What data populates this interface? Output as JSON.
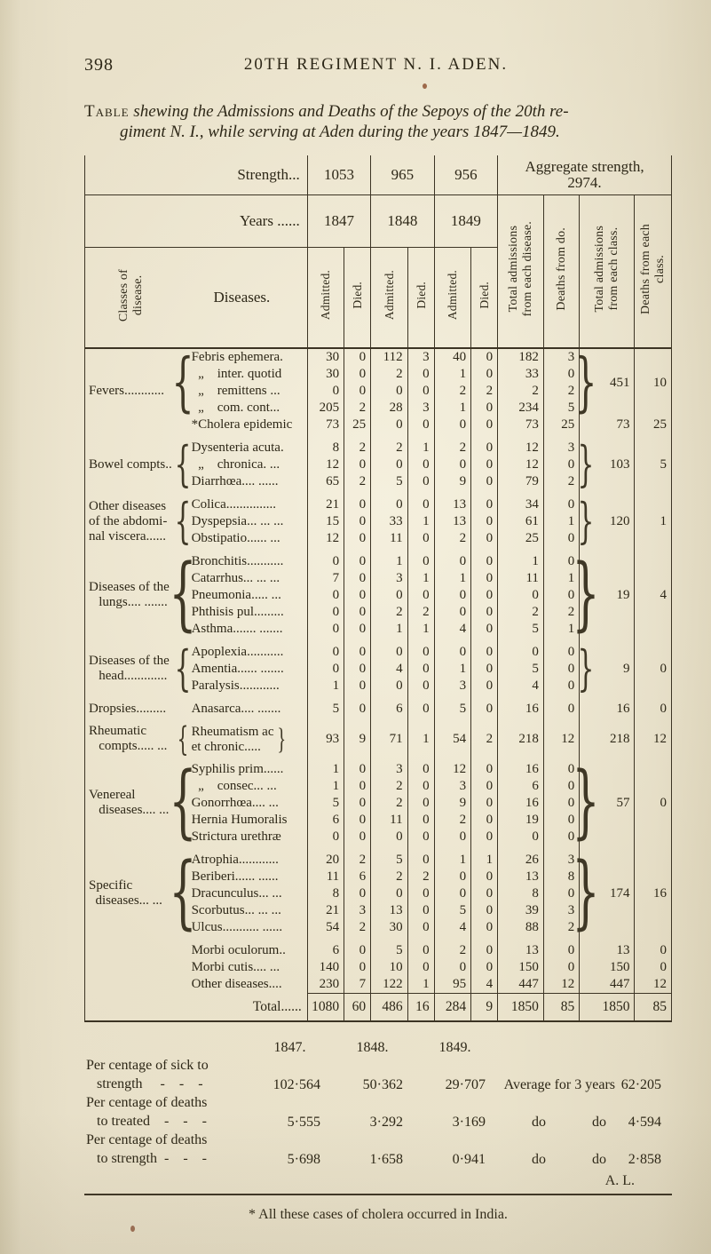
{
  "page": {
    "number": "398",
    "running_title": "20TH REGIMENT N. I. ADEN.",
    "caption_smallcaps": "Table",
    "caption_line1_rest": " shewing the Admissions and Deaths of the Sepoys of the 20th re-",
    "caption_line2": "giment N. I., while serving at Aden during the years 1847—1849.",
    "footnote": "* All these cases of cholera occurred in India.",
    "signature": "A. L."
  },
  "table": {
    "strength_label": "Strength...",
    "strength_values": [
      "1053",
      "965",
      "956"
    ],
    "aggregate_label": "Aggregate strength,\n2974.",
    "years_label": "Years ......",
    "years": [
      "1847",
      "1848",
      "1849"
    ],
    "col_headers": {
      "classes": "Classes of\ndisease.",
      "diseases": "Diseases.",
      "admitted": "Admitted.",
      "died": "Died.",
      "total_disease": "Total admissions\nfrom each disease.",
      "deaths_do": "Deaths from do.",
      "total_class": "Total admissions\nfrom each class.",
      "deaths_class": "Deaths from each\nclass."
    },
    "groups": [
      {
        "class_label": "Fevers............",
        "blocks": [
          {
            "brace": true,
            "right_brace": true,
            "class_total": "451",
            "class_deaths": "10",
            "rows": [
              {
                "name": "Febris ephemera.",
                "v": [
                  "30",
                  "0",
                  "112",
                  "3",
                  "40",
                  "0",
                  "182",
                  "3"
                ]
              },
              {
                "name": "  „    inter. quotid",
                "v": [
                  "30",
                  "0",
                  "2",
                  "0",
                  "1",
                  "0",
                  "33",
                  "0"
                ]
              },
              {
                "name": "  „    remittens ...",
                "v": [
                  "0",
                  "0",
                  "0",
                  "0",
                  "2",
                  "2",
                  "2",
                  "2"
                ]
              },
              {
                "name": "  „    com. cont...",
                "v": [
                  "205",
                  "2",
                  "28",
                  "3",
                  "1",
                  "0",
                  "234",
                  "5"
                ]
              }
            ]
          },
          {
            "brace": false,
            "right_brace": false,
            "class_total": "73",
            "class_deaths": "25",
            "rows": [
              {
                "name": "*Cholera epidemic",
                "v": [
                  "73",
                  "25",
                  "0",
                  "0",
                  "0",
                  "0",
                  "73",
                  "25"
                ]
              }
            ]
          }
        ]
      },
      {
        "class_label": "Bowel compts..",
        "blocks": [
          {
            "brace": true,
            "right_brace": true,
            "class_total": "103",
            "class_deaths": "5",
            "rows": [
              {
                "name": "Dysenteria acuta.",
                "v": [
                  "8",
                  "2",
                  "2",
                  "1",
                  "2",
                  "0",
                  "12",
                  "3"
                ]
              },
              {
                "name": "  „    chronica. ...",
                "v": [
                  "12",
                  "0",
                  "0",
                  "0",
                  "0",
                  "0",
                  "12",
                  "0"
                ]
              },
              {
                "name": "Diarrhœa.... ......",
                "v": [
                  "65",
                  "2",
                  "5",
                  "0",
                  "9",
                  "0",
                  "79",
                  "2"
                ]
              }
            ]
          }
        ]
      },
      {
        "class_label": "Other diseases\nof the abdomi-\nnal viscera......",
        "blocks": [
          {
            "brace": true,
            "right_brace": true,
            "class_total": "120",
            "class_deaths": "1",
            "rows": [
              {
                "name": "Colica...............",
                "v": [
                  "21",
                  "0",
                  "0",
                  "0",
                  "13",
                  "0",
                  "34",
                  "0"
                ]
              },
              {
                "name": "Dyspepsia... ... ...",
                "v": [
                  "15",
                  "0",
                  "33",
                  "1",
                  "13",
                  "0",
                  "61",
                  "1"
                ]
              },
              {
                "name": "Obstipatio...... ...",
                "v": [
                  "12",
                  "0",
                  "11",
                  "0",
                  "2",
                  "0",
                  "25",
                  "0"
                ]
              }
            ]
          }
        ]
      },
      {
        "class_label": "Diseases of the\n   lungs.... .......",
        "blocks": [
          {
            "brace": true,
            "right_brace": true,
            "class_total": "19",
            "class_deaths": "4",
            "rows": [
              {
                "name": "Bronchitis...........",
                "v": [
                  "0",
                  "0",
                  "1",
                  "0",
                  "0",
                  "0",
                  "1",
                  "0"
                ]
              },
              {
                "name": "Catarrhus... ... ...",
                "v": [
                  "7",
                  "0",
                  "3",
                  "1",
                  "1",
                  "0",
                  "11",
                  "1"
                ]
              },
              {
                "name": "Pneumonia..... ...",
                "v": [
                  "0",
                  "0",
                  "0",
                  "0",
                  "0",
                  "0",
                  "0",
                  "0"
                ]
              },
              {
                "name": "Phthisis pul.........",
                "v": [
                  "0",
                  "0",
                  "2",
                  "2",
                  "0",
                  "0",
                  "2",
                  "2"
                ]
              },
              {
                "name": "Asthma....... .......",
                "v": [
                  "0",
                  "0",
                  "1",
                  "1",
                  "4",
                  "0",
                  "5",
                  "1"
                ]
              }
            ]
          }
        ]
      },
      {
        "class_label": "Diseases of the\n   head.............",
        "blocks": [
          {
            "brace": true,
            "right_brace": true,
            "class_total": "9",
            "class_deaths": "0",
            "rows": [
              {
                "name": "Apoplexia...........",
                "v": [
                  "0",
                  "0",
                  "0",
                  "0",
                  "0",
                  "0",
                  "0",
                  "0"
                ]
              },
              {
                "name": "Amentia...... .......",
                "v": [
                  "0",
                  "0",
                  "4",
                  "0",
                  "1",
                  "0",
                  "5",
                  "0"
                ]
              },
              {
                "name": "Paralysis............",
                "v": [
                  "1",
                  "0",
                  "0",
                  "0",
                  "3",
                  "0",
                  "4",
                  "0"
                ]
              }
            ]
          }
        ]
      },
      {
        "class_label": "Dropsies.........",
        "blocks": [
          {
            "brace": false,
            "right_brace": false,
            "class_total": "16",
            "class_deaths": "0",
            "rows": [
              {
                "name": "Anasarca.... .......",
                "v": [
                  "5",
                  "0",
                  "6",
                  "0",
                  "5",
                  "0",
                  "16",
                  "0"
                ]
              }
            ]
          }
        ]
      },
      {
        "class_label": "Rheumatic\n   compts..... ...",
        "blocks": [
          {
            "brace": true,
            "right_brace": false,
            "class_total": "218",
            "class_deaths": "12",
            "rows": [
              {
                "name": "Rheumatism ac\net chronic.....",
                "name_right_brace": true,
                "v": [
                  "93",
                  "9",
                  "71",
                  "1",
                  "54",
                  "2",
                  "218",
                  "12"
                ]
              }
            ]
          }
        ]
      },
      {
        "class_label": "Venereal\n   diseases.... ...",
        "blocks": [
          {
            "brace": true,
            "right_brace": true,
            "class_total": "57",
            "class_deaths": "0",
            "rows": [
              {
                "name": "Syphilis prim......",
                "v": [
                  "1",
                  "0",
                  "3",
                  "0",
                  "12",
                  "0",
                  "16",
                  "0"
                ]
              },
              {
                "name": "  „    consec... ...",
                "v": [
                  "1",
                  "0",
                  "2",
                  "0",
                  "3",
                  "0",
                  "6",
                  "0"
                ]
              },
              {
                "name": "Gonorrhœa.... ...",
                "v": [
                  "5",
                  "0",
                  "2",
                  "0",
                  "9",
                  "0",
                  "16",
                  "0"
                ]
              },
              {
                "name": "Hernia Humoralis",
                "v": [
                  "6",
                  "0",
                  "11",
                  "0",
                  "2",
                  "0",
                  "19",
                  "0"
                ]
              },
              {
                "name": "Strictura urethræ",
                "v": [
                  "0",
                  "0",
                  "0",
                  "0",
                  "0",
                  "0",
                  "0",
                  "0"
                ]
              }
            ]
          }
        ]
      },
      {
        "class_label": "Specific\n  diseases... ...",
        "blocks": [
          {
            "brace": true,
            "right_brace": true,
            "class_total": "174",
            "class_deaths": "16",
            "rows": [
              {
                "name": "Atrophia............",
                "v": [
                  "20",
                  "2",
                  "5",
                  "0",
                  "1",
                  "1",
                  "26",
                  "3"
                ]
              },
              {
                "name": "Beriberi...... ......",
                "v": [
                  "11",
                  "6",
                  "2",
                  "2",
                  "0",
                  "0",
                  "13",
                  "8"
                ]
              },
              {
                "name": "Dracunculus... ...",
                "v": [
                  "8",
                  "0",
                  "0",
                  "0",
                  "0",
                  "0",
                  "8",
                  "0"
                ]
              },
              {
                "name": "Scorbutus... ... ...",
                "v": [
                  "21",
                  "3",
                  "13",
                  "0",
                  "5",
                  "0",
                  "39",
                  "3"
                ]
              },
              {
                "name": "Ulcus........... ......",
                "v": [
                  "54",
                  "2",
                  "30",
                  "0",
                  "4",
                  "0",
                  "88",
                  "2"
                ]
              }
            ]
          }
        ]
      },
      {
        "class_label": "",
        "blocks": [
          {
            "brace": false,
            "right_brace": false,
            "class_total": "13",
            "class_deaths": "0",
            "rows": [
              {
                "name": "Morbi oculorum..",
                "v": [
                  "6",
                  "0",
                  "5",
                  "0",
                  "2",
                  "0",
                  "13",
                  "0"
                ]
              }
            ]
          },
          {
            "brace": false,
            "right_brace": false,
            "class_total": "150",
            "class_deaths": "0",
            "rows": [
              {
                "name": "Morbi cutis.... ...",
                "v": [
                  "140",
                  "0",
                  "10",
                  "0",
                  "0",
                  "0",
                  "150",
                  "0"
                ]
              }
            ]
          },
          {
            "brace": false,
            "right_brace": false,
            "class_total": "447",
            "class_deaths": "12",
            "rows": [
              {
                "name": "Other diseases....",
                "v": [
                  "230",
                  "7",
                  "122",
                  "1",
                  "95",
                  "4",
                  "447",
                  "12"
                ]
              }
            ]
          }
        ]
      }
    ],
    "total": {
      "label": "Total......",
      "v": [
        "1080",
        "60",
        "486",
        "16",
        "284",
        "9",
        "1850",
        "85"
      ],
      "class_total": "1850",
      "class_deaths": "85"
    }
  },
  "footer": {
    "years": [
      "1847.",
      "1848.",
      "1849."
    ],
    "rows": [
      {
        "label": "Per centage of sick to\n   strength     -    -    -",
        "values": [
          "102·564",
          "50·362",
          "29·707"
        ],
        "avg_label": "Average for 3 years",
        "avg_value": "62·205"
      },
      {
        "label": "Per centage of deaths\n   to treated    -    -    -",
        "values": [
          "5·555",
          "3·292",
          "3·169"
        ],
        "do1": "do",
        "do2": "do",
        "avg_value": "4·594"
      },
      {
        "label": "Per centage of deaths\n   to strength  -    -    -",
        "values": [
          "5·698",
          "1·658",
          "0·941"
        ],
        "do1": "do",
        "do2": "do",
        "avg_value": "2·858"
      }
    ]
  }
}
